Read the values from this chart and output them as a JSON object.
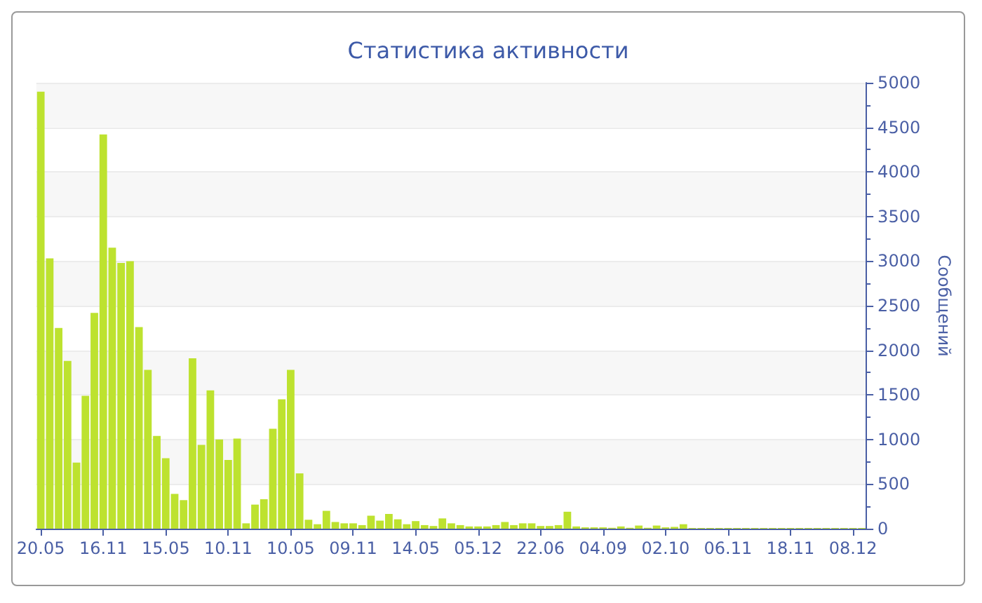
{
  "chart_data": {
    "type": "bar",
    "title": "Статистика активности",
    "ylabel": "Сообщений",
    "categories": [
      "20.05",
      null,
      null,
      null,
      null,
      null,
      null,
      "16.11",
      null,
      null,
      null,
      null,
      null,
      null,
      "15.05",
      null,
      null,
      null,
      null,
      null,
      null,
      "10.11",
      null,
      null,
      null,
      null,
      null,
      null,
      "10.05",
      null,
      null,
      null,
      null,
      null,
      null,
      "09.11",
      null,
      null,
      null,
      null,
      null,
      null,
      "14.05",
      null,
      null,
      null,
      null,
      null,
      null,
      "05.12",
      null,
      null,
      null,
      null,
      null,
      null,
      "22.06",
      null,
      null,
      null,
      null,
      null,
      null,
      "04.09",
      null,
      null,
      null,
      null,
      null,
      null,
      "02.10",
      null,
      null,
      null,
      null,
      null,
      null,
      "06.11",
      null,
      null,
      null,
      null,
      null,
      null,
      "18.11",
      null,
      null,
      null,
      null,
      null,
      null,
      "08.12",
      null
    ],
    "values": [
      4900,
      3030,
      2250,
      1880,
      740,
      1490,
      2420,
      4420,
      3150,
      2980,
      3000,
      2260,
      1780,
      1040,
      790,
      390,
      320,
      1910,
      940,
      1550,
      1000,
      770,
      1010,
      60,
      270,
      330,
      1120,
      1450,
      1780,
      620,
      100,
      50,
      200,
      75,
      60,
      60,
      40,
      145,
      90,
      165,
      105,
      50,
      85,
      40,
      30,
      115,
      60,
      40,
      25,
      25,
      25,
      40,
      75,
      40,
      60,
      60,
      30,
      30,
      40,
      190,
      25,
      15,
      15,
      15,
      10,
      25,
      10,
      35,
      10,
      35,
      15,
      20,
      50,
      8,
      8,
      8,
      8,
      8,
      8,
      8,
      8,
      8,
      8,
      8,
      8,
      8,
      8,
      8,
      8,
      8,
      8,
      8,
      8
    ],
    "color": "#bde22f",
    "ylim": [
      0,
      5000
    ],
    "yticks": [
      0,
      500,
      1000,
      1500,
      2000,
      2500,
      3000,
      3500,
      4000,
      4500,
      5000
    ],
    "grid": true
  }
}
